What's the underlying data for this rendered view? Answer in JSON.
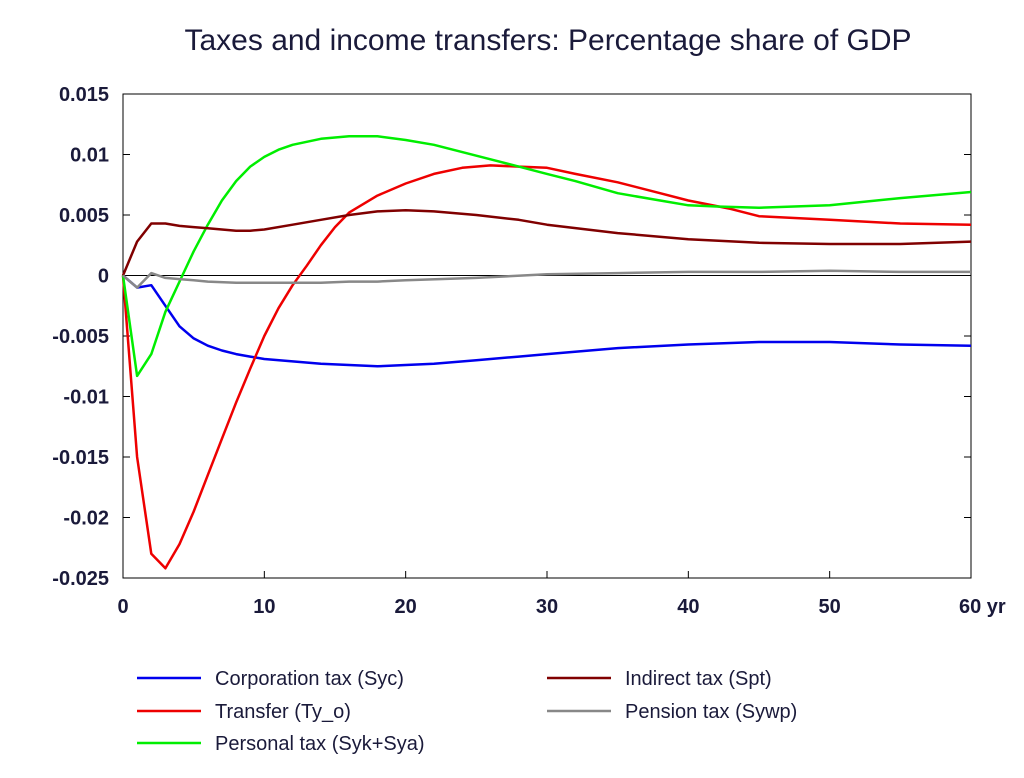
{
  "chart_data": {
    "type": "line",
    "title": "Taxes and income transfers: Percentage share of GDP",
    "xlabel": "",
    "ylabel": "",
    "xlim": [
      0,
      60
    ],
    "ylim": [
      -0.025,
      0.015
    ],
    "x_ticks": [
      0,
      10,
      20,
      30,
      40,
      50,
      60
    ],
    "x_tick_labels": [
      "0",
      "10",
      "20",
      "30",
      "40",
      "50",
      "60 yr"
    ],
    "y_ticks": [
      0.015,
      0.01,
      0.005,
      0,
      -0.005,
      -0.01,
      -0.015,
      -0.02,
      -0.025
    ],
    "y_tick_labels": [
      "0.015",
      "0.01",
      "0.005",
      "0",
      "-0.005",
      "-0.01",
      "-0.015",
      "-0.02",
      "-0.025"
    ],
    "grid": false,
    "legend_position": "bottom",
    "series": [
      {
        "name": "Corporation tax (Syc)",
        "color": "#0000ee",
        "x": [
          0,
          1,
          2,
          3,
          4,
          5,
          6,
          7,
          8,
          9,
          10,
          12,
          14,
          16,
          18,
          20,
          22,
          25,
          28,
          30,
          35,
          40,
          45,
          50,
          55,
          60
        ],
        "values": [
          0,
          -0.001,
          -0.0008,
          -0.0025,
          -0.0042,
          -0.0052,
          -0.0058,
          -0.0062,
          -0.0065,
          -0.0067,
          -0.0069,
          -0.0071,
          -0.0073,
          -0.0074,
          -0.0075,
          -0.0074,
          -0.0073,
          -0.007,
          -0.0067,
          -0.0065,
          -0.006,
          -0.0057,
          -0.0055,
          -0.0055,
          -0.0057,
          -0.0058
        ]
      },
      {
        "name": "Transfer (Ty_o)",
        "color": "#ee0000",
        "x": [
          0,
          1,
          2,
          3,
          4,
          5,
          6,
          7,
          8,
          9,
          10,
          11,
          12,
          13,
          14,
          15,
          16,
          18,
          20,
          22,
          24,
          26,
          28,
          30,
          32,
          35,
          38,
          40,
          43,
          45,
          50,
          55,
          60
        ],
        "values": [
          0,
          -0.015,
          -0.023,
          -0.0242,
          -0.0222,
          -0.0195,
          -0.0165,
          -0.0135,
          -0.0105,
          -0.0077,
          -0.005,
          -0.0027,
          -0.0008,
          0.0008,
          0.0025,
          0.004,
          0.0052,
          0.0066,
          0.0076,
          0.0084,
          0.0089,
          0.0091,
          0.009,
          0.0089,
          0.0084,
          0.0077,
          0.0068,
          0.0062,
          0.0055,
          0.0049,
          0.0046,
          0.0043,
          0.0042
        ]
      },
      {
        "name": "Personal tax (Syk+Sya)",
        "color": "#00ee00",
        "x": [
          0,
          1,
          2,
          3,
          4,
          5,
          6,
          7,
          8,
          9,
          10,
          11,
          12,
          14,
          16,
          18,
          20,
          22,
          24,
          26,
          28,
          30,
          32,
          35,
          38,
          40,
          42,
          45,
          50,
          55,
          60
        ],
        "values": [
          0,
          -0.0083,
          -0.0065,
          -0.003,
          -0.0005,
          0.002,
          0.0042,
          0.0062,
          0.0078,
          0.009,
          0.0098,
          0.0104,
          0.0108,
          0.0113,
          0.0115,
          0.0115,
          0.0112,
          0.0108,
          0.0102,
          0.0096,
          0.009,
          0.0084,
          0.0078,
          0.0068,
          0.0062,
          0.0058,
          0.0057,
          0.0056,
          0.0058,
          0.0064,
          0.0069
        ]
      },
      {
        "name": "Indirect tax (Spt)",
        "color": "#800000",
        "x": [
          0,
          1,
          2,
          3,
          4,
          5,
          6,
          7,
          8,
          9,
          10,
          12,
          14,
          16,
          18,
          20,
          22,
          25,
          28,
          30,
          35,
          40,
          45,
          50,
          55,
          60
        ],
        "values": [
          0,
          0.0028,
          0.0043,
          0.0043,
          0.0041,
          0.004,
          0.0039,
          0.0038,
          0.0037,
          0.0037,
          0.0038,
          0.0042,
          0.0046,
          0.005,
          0.0053,
          0.0054,
          0.0053,
          0.005,
          0.0046,
          0.0042,
          0.0035,
          0.003,
          0.0027,
          0.0026,
          0.0026,
          0.0028
        ]
      },
      {
        "name": "Pension tax (Sywp)",
        "color": "#888888",
        "x": [
          0,
          1,
          2,
          3,
          4,
          5,
          6,
          8,
          10,
          12,
          14,
          16,
          18,
          20,
          25,
          30,
          35,
          40,
          45,
          50,
          55,
          60
        ],
        "values": [
          0,
          -0.001,
          0.0002,
          -0.0002,
          -0.0003,
          -0.0004,
          -0.0005,
          -0.0006,
          -0.0006,
          -0.0006,
          -0.0006,
          -0.0005,
          -0.0005,
          -0.0004,
          -0.0002,
          0.0001,
          0.0002,
          0.0003,
          0.0003,
          0.0004,
          0.0003,
          0.0003
        ]
      }
    ]
  },
  "legend": {
    "items": [
      {
        "label": "Corporation tax (Syc)",
        "color": "#0000ee"
      },
      {
        "label": "Indirect tax (Spt)",
        "color": "#800000"
      },
      {
        "label": "Transfer (Ty_o)",
        "color": "#ee0000"
      },
      {
        "label": "Pension tax (Sywp)",
        "color": "#888888"
      },
      {
        "label": "Personal tax (Syk+Sya)",
        "color": "#00ee00"
      }
    ]
  }
}
